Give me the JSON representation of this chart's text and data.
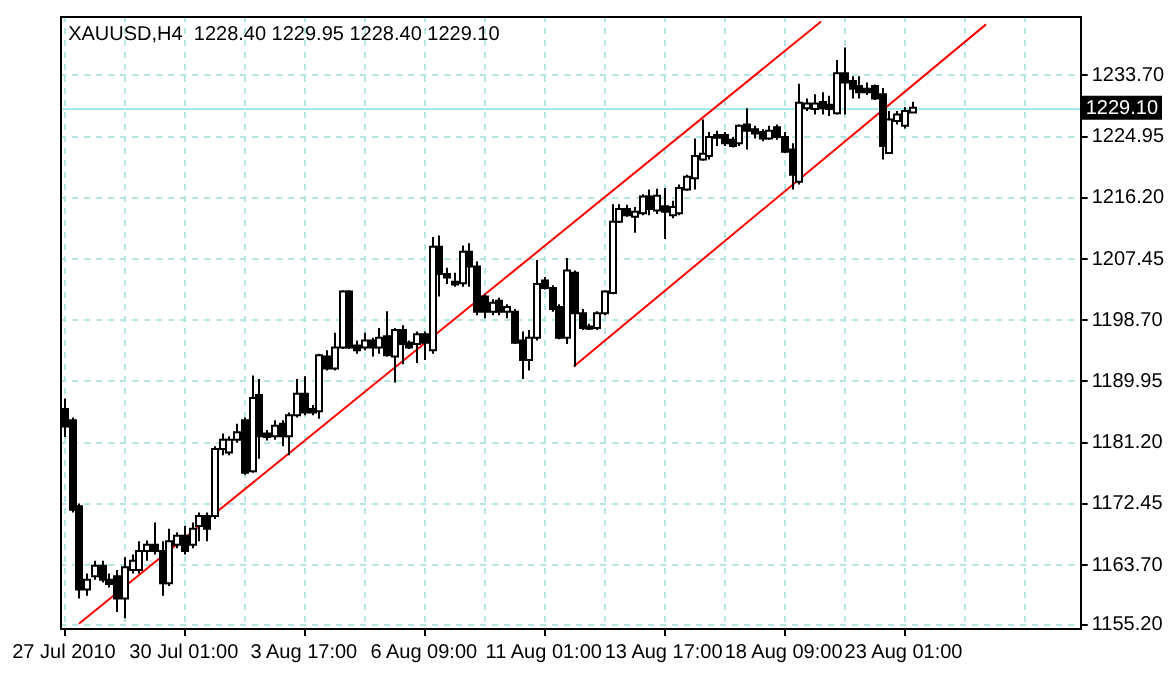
{
  "chart_data": {
    "type": "candlestick",
    "title": "XAUUSD,H4  1228.40 1229.95 1228.40 1229.10",
    "color": "#000000",
    "categories": [
      "27 Jul 2010",
      null,
      null,
      null,
      null,
      null,
      null,
      null,
      null,
      null,
      null,
      null,
      null,
      null,
      null,
      null,
      "30 Jul 01:00",
      null,
      null,
      null,
      null,
      null,
      null,
      null,
      null,
      null,
      null,
      null,
      null,
      null,
      null,
      null,
      "3 Aug 17:00",
      null,
      null,
      null,
      null,
      null,
      null,
      null,
      null,
      null,
      null,
      null,
      null,
      null,
      null,
      null,
      "6 Aug 09:00",
      null,
      null,
      null,
      null,
      null,
      null,
      null,
      null,
      null,
      null,
      null,
      null,
      null,
      null,
      null,
      "11 Aug 01:00",
      null,
      null,
      null,
      null,
      null,
      null,
      null,
      null,
      null,
      null,
      null,
      null,
      null,
      null,
      null,
      "13 Aug 17:00",
      null,
      null,
      null,
      null,
      null,
      null,
      null,
      null,
      null,
      null,
      null,
      null,
      null,
      null,
      null,
      "18 Aug 09:00",
      null,
      null,
      null,
      null,
      null,
      null,
      null,
      null,
      null,
      null,
      null,
      null,
      null,
      null,
      null,
      "23 Aug 01:00",
      null,
      null,
      null,
      null,
      null,
      null,
      null,
      null,
      null,
      null,
      null,
      null,
      null,
      null,
      null,
      null,
      null,
      null,
      null,
      null,
      null,
      null,
      null
    ],
    "ohlc": [
      [
        1186.0,
        1187.5,
        1182.0,
        1183.5
      ],
      [
        1184.4,
        1184.8,
        1171.2,
        1171.6
      ],
      [
        1172.1,
        1172.5,
        1158.9,
        1160.2
      ],
      [
        1160.2,
        1162.5,
        1159.3,
        1161.6
      ],
      [
        1162.1,
        1164.3,
        1161.6,
        1163.6
      ],
      [
        1163.6,
        1164.3,
        1161.2,
        1161.6
      ],
      [
        1161.6,
        1162.5,
        1160.5,
        1161.0
      ],
      [
        1162.1,
        1163.0,
        1157.0,
        1158.9
      ],
      [
        1158.9,
        1164.8,
        1156.1,
        1163.4
      ],
      [
        1163.0,
        1165.2,
        1162.5,
        1164.3
      ],
      [
        1163.0,
        1167.1,
        1162.5,
        1165.7
      ],
      [
        1165.7,
        1167.2,
        1164.3,
        1166.6
      ],
      [
        1166.6,
        1169.8,
        1165.2,
        1165.7
      ],
      [
        1165.7,
        1167.1,
        1159.3,
        1161.1
      ],
      [
        1161.1,
        1168.9,
        1160.7,
        1167.1
      ],
      [
        1166.6,
        1168.4,
        1166.1,
        1167.9
      ],
      [
        1167.9,
        1169.3,
        1165.2,
        1165.7
      ],
      [
        1166.6,
        1169.8,
        1166.1,
        1168.9
      ],
      [
        1169.3,
        1171.2,
        1167.1,
        1170.7
      ],
      [
        1170.7,
        1171.2,
        1167.1,
        1168.9
      ],
      [
        1170.7,
        1180.7,
        1170.3,
        1180.3
      ],
      [
        1180.3,
        1182.5,
        1179.4,
        1181.6
      ],
      [
        1179.8,
        1182.1,
        1179.4,
        1181.6
      ],
      [
        1181.6,
        1183.9,
        1181.2,
        1182.7
      ],
      [
        1184.4,
        1184.8,
        1176.6,
        1176.9
      ],
      [
        1177.1,
        1190.8,
        1176.9,
        1187.6
      ],
      [
        1188.0,
        1190.3,
        1178.9,
        1182.1
      ],
      [
        1182.5,
        1183.0,
        1181.5,
        1182.0
      ],
      [
        1182.1,
        1184.4,
        1181.6,
        1183.6
      ],
      [
        1183.9,
        1184.4,
        1180.7,
        1182.1
      ],
      [
        1182.1,
        1185.5,
        1179.4,
        1185.1
      ],
      [
        1185.1,
        1190.3,
        1184.8,
        1188.2
      ],
      [
        1188.2,
        1190.7,
        1185.1,
        1185.5
      ],
      [
        1186.0,
        1186.6,
        1185.1,
        1185.5
      ],
      [
        1185.7,
        1193.9,
        1184.6,
        1193.7
      ],
      [
        1193.5,
        1194.4,
        1191.5,
        1191.8
      ],
      [
        1191.8,
        1196.9,
        1191.5,
        1194.8
      ],
      [
        1194.8,
        1203.0,
        1194.6,
        1202.8
      ],
      [
        1202.8,
        1203.0,
        1194.6,
        1194.8
      ],
      [
        1195.1,
        1195.8,
        1193.9,
        1194.4
      ],
      [
        1194.8,
        1196.9,
        1194.4,
        1195.8
      ],
      [
        1195.8,
        1196.2,
        1193.5,
        1194.8
      ],
      [
        1194.8,
        1197.6,
        1193.9,
        1196.2
      ],
      [
        1196.4,
        1200.0,
        1193.5,
        1193.7
      ],
      [
        1193.5,
        1197.6,
        1189.8,
        1197.3
      ],
      [
        1197.3,
        1198.0,
        1192.4,
        1195.3
      ],
      [
        1195.5,
        1195.8,
        1194.6,
        1194.8
      ],
      [
        1195.3,
        1197.1,
        1192.6,
        1196.7
      ],
      [
        1196.7,
        1197.1,
        1193.0,
        1195.5
      ],
      [
        1194.4,
        1210.6,
        1193.9,
        1209.2
      ],
      [
        1209.2,
        1210.8,
        1202.1,
        1205.3
      ],
      [
        1205.3,
        1206.2,
        1203.9,
        1204.8
      ],
      [
        1204.2,
        1205.5,
        1203.5,
        1203.8
      ],
      [
        1204.0,
        1209.4,
        1203.5,
        1208.5
      ],
      [
        1208.5,
        1209.7,
        1203.5,
        1206.4
      ],
      [
        1206.4,
        1207.1,
        1199.4,
        1199.9
      ],
      [
        1202.1,
        1202.4,
        1199.0,
        1199.9
      ],
      [
        1199.9,
        1201.7,
        1199.4,
        1201.2
      ],
      [
        1201.5,
        1201.9,
        1199.4,
        1199.9
      ],
      [
        1199.9,
        1201.0,
        1199.0,
        1200.6
      ],
      [
        1199.9,
        1200.3,
        1195.3,
        1195.5
      ],
      [
        1195.8,
        1197.1,
        1190.3,
        1193.0
      ],
      [
        1193.0,
        1197.3,
        1191.5,
        1196.2
      ],
      [
        1196.2,
        1207.3,
        1195.8,
        1203.9
      ],
      [
        1204.4,
        1204.9,
        1203.1,
        1203.3
      ],
      [
        1203.3,
        1203.7,
        1199.9,
        1200.3
      ],
      [
        1200.6,
        1201.0,
        1196.0,
        1196.2
      ],
      [
        1196.2,
        1207.6,
        1195.3,
        1205.8
      ],
      [
        1205.5,
        1205.8,
        1192.1,
        1199.7
      ],
      [
        1199.7,
        1200.3,
        1197.3,
        1197.6
      ],
      [
        1197.8,
        1198.2,
        1197.3,
        1197.5
      ],
      [
        1197.6,
        1200.0,
        1197.3,
        1199.7
      ],
      [
        1199.7,
        1203.0,
        1199.4,
        1202.8
      ],
      [
        1202.6,
        1215.3,
        1202.4,
        1212.8
      ],
      [
        1212.8,
        1215.3,
        1212.6,
        1214.6
      ],
      [
        1214.6,
        1215.2,
        1213.5,
        1213.7
      ],
      [
        1213.5,
        1214.9,
        1211.2,
        1214.2
      ],
      [
        1214.0,
        1216.7,
        1213.7,
        1216.4
      ],
      [
        1216.4,
        1217.4,
        1213.7,
        1214.6
      ],
      [
        1214.4,
        1217.5,
        1213.9,
        1216.5
      ],
      [
        1215.0,
        1217.6,
        1210.3,
        1214.2
      ],
      [
        1213.7,
        1215.8,
        1213.3,
        1214.9
      ],
      [
        1214.0,
        1218.1,
        1213.7,
        1217.6
      ],
      [
        1217.4,
        1219.5,
        1217.2,
        1219.2
      ],
      [
        1219.0,
        1224.7,
        1217.4,
        1222.2
      ],
      [
        1221.7,
        1227.4,
        1221.5,
        1222.5
      ],
      [
        1222.2,
        1225.6,
        1221.7,
        1224.9
      ],
      [
        1225.2,
        1225.8,
        1223.6,
        1224.8
      ],
      [
        1225.2,
        1225.6,
        1223.6,
        1224.0
      ],
      [
        1224.5,
        1224.9,
        1223.4,
        1223.6
      ],
      [
        1224.0,
        1226.7,
        1223.6,
        1226.5
      ],
      [
        1226.7,
        1229.0,
        1223.1,
        1225.8
      ],
      [
        1226.0,
        1226.5,
        1224.7,
        1225.4
      ],
      [
        1225.6,
        1226.0,
        1224.3,
        1224.7
      ],
      [
        1224.7,
        1226.5,
        1224.5,
        1225.8
      ],
      [
        1226.3,
        1226.7,
        1224.5,
        1224.9
      ],
      [
        1224.9,
        1225.6,
        1222.6,
        1222.8
      ],
      [
        1223.1,
        1224.0,
        1217.4,
        1219.5
      ],
      [
        1218.5,
        1232.5,
        1218.1,
        1229.8
      ],
      [
        1229.0,
        1230.4,
        1228.6,
        1229.7
      ],
      [
        1228.9,
        1231.0,
        1228.1,
        1229.7
      ],
      [
        1229.9,
        1231.3,
        1228.1,
        1229.0
      ],
      [
        1229.5,
        1230.8,
        1227.9,
        1228.9
      ],
      [
        1228.3,
        1235.9,
        1228.1,
        1234.0
      ],
      [
        1234.0,
        1237.7,
        1228.1,
        1232.7
      ],
      [
        1232.9,
        1233.6,
        1230.4,
        1231.8
      ],
      [
        1232.2,
        1233.6,
        1230.4,
        1231.3
      ],
      [
        1231.8,
        1232.7,
        1230.9,
        1231.3
      ],
      [
        1232.2,
        1232.4,
        1230.2,
        1230.4
      ],
      [
        1231.0,
        1231.9,
        1221.7,
        1223.6
      ],
      [
        1222.6,
        1228.6,
        1222.5,
        1227.4
      ],
      [
        1227.2,
        1228.6,
        1226.7,
        1228.1
      ],
      [
        1226.5,
        1229.2,
        1226.1,
        1228.6
      ],
      [
        1228.4,
        1229.95,
        1228.4,
        1229.1
      ],
      null,
      null,
      null,
      null,
      null,
      null,
      null,
      null,
      null,
      null,
      null,
      null,
      null,
      null,
      null,
      null,
      null,
      null,
      null,
      null,
      null,
      null
    ],
    "colors": [
      "#000000",
      "#000000",
      "#000000",
      "#ffffff",
      "#ffffff",
      "#000000",
      "#000000",
      "#000000",
      "#ffffff",
      "#ffffff",
      "#ffffff",
      "#ffffff",
      "#000000",
      "#000000",
      "#ffffff",
      "#ffffff",
      "#000000",
      "#ffffff",
      "#ffffff",
      "#000000",
      "#ffffff",
      "#ffffff",
      "#ffffff",
      "#ffffff",
      "#000000",
      "#ffffff",
      "#000000",
      "#000000",
      "#ffffff",
      "#000000",
      "#ffffff",
      "#ffffff",
      "#000000",
      "#000000",
      "#ffffff",
      "#000000",
      "#ffffff",
      "#ffffff",
      "#000000",
      "#000000",
      "#ffffff",
      "#000000",
      "#ffffff",
      "#000000",
      "#ffffff",
      "#000000",
      "#000000",
      "#ffffff",
      "#000000",
      "#ffffff",
      "#000000",
      "#000000",
      "#000000",
      "#ffffff",
      "#000000",
      "#000000",
      "#000000",
      "#ffffff",
      "#000000",
      "#ffffff",
      "#000000",
      "#000000",
      "#ffffff",
      "#ffffff",
      "#000000",
      "#000000",
      "#000000",
      "#ffffff",
      "#000000",
      "#000000",
      "#000000",
      "#ffffff",
      "#ffffff",
      "#ffffff",
      "#ffffff",
      "#000000",
      "#ffffff",
      "#ffffff",
      "#000000",
      "#ffffff",
      "#000000",
      "#ffffff",
      "#ffffff",
      "#ffffff",
      "#ffffff",
      "#ffffff",
      "#ffffff",
      "#000000",
      "#000000",
      "#000000",
      "#ffffff",
      "#000000",
      "#000000",
      "#000000",
      "#ffffff",
      "#000000",
      "#000000",
      "#000000",
      "#ffffff",
      "#ffffff",
      "#ffffff",
      "#000000",
      "#000000",
      "#ffffff",
      "#000000",
      "#000000",
      "#000000",
      "#000000",
      "#000000",
      "#000000",
      "#ffffff",
      "#ffffff",
      "#ffffff",
      "#ffffff",
      null,
      null,
      null,
      null,
      null,
      null,
      null,
      null,
      null,
      null,
      null,
      null,
      null,
      null,
      null,
      null,
      null,
      null,
      null,
      null,
      null,
      null
    ],
    "series": [
      {
        "type": "line",
        "color": "#ff0000",
        "values": [
          null,
          null,
          1155.3,
          null,
          null,
          null,
          null,
          null,
          null,
          null,
          null,
          null,
          null,
          null,
          null,
          null,
          null,
          null,
          null,
          null,
          null,
          null,
          null,
          null,
          null,
          null,
          null,
          null,
          null,
          null,
          null,
          null,
          null,
          null,
          null,
          null,
          null,
          null,
          null,
          null,
          null,
          null,
          null,
          null,
          null,
          null,
          null,
          null,
          null,
          null,
          null,
          null,
          null,
          null,
          null,
          null,
          null,
          null,
          null,
          null,
          null,
          null,
          null,
          null,
          null,
          null,
          null,
          null,
          null,
          null,
          null,
          null,
          null,
          null,
          null,
          null,
          null,
          null,
          null,
          null,
          null,
          null,
          null,
          null,
          null,
          null,
          null,
          null,
          null,
          null,
          null,
          null,
          null,
          null,
          null,
          null,
          null,
          null,
          null,
          null,
          null,
          1241.4,
          null,
          null,
          null,
          null,
          null,
          null,
          null,
          null,
          null,
          null,
          null,
          null,
          null,
          null,
          null,
          null,
          null,
          null,
          null,
          null,
          null,
          null,
          null,
          null,
          null,
          null,
          null,
          null,
          null,
          null,
          null,
          null,
          null,
          null
        ]
      },
      {
        "type": "line",
        "color": "#ff0000",
        "values": [
          null,
          null,
          null,
          null,
          null,
          null,
          null,
          null,
          null,
          null,
          null,
          null,
          null,
          null,
          null,
          null,
          null,
          null,
          null,
          null,
          null,
          null,
          null,
          null,
          null,
          null,
          null,
          null,
          null,
          null,
          null,
          null,
          null,
          null,
          null,
          null,
          null,
          null,
          null,
          null,
          null,
          null,
          null,
          null,
          null,
          null,
          null,
          null,
          null,
          null,
          null,
          null,
          null,
          null,
          null,
          null,
          null,
          null,
          null,
          null,
          null,
          null,
          null,
          null,
          null,
          null,
          null,
          null,
          1192.1,
          null,
          null,
          null,
          null,
          null,
          null,
          null,
          null,
          null,
          null,
          null,
          null,
          null,
          null,
          null,
          null,
          null,
          null,
          null,
          null,
          null,
          null,
          null,
          null,
          null,
          null,
          null,
          null,
          null,
          null,
          null,
          null,
          null,
          null,
          null,
          null,
          null,
          null,
          null,
          null,
          null,
          null,
          null,
          null,
          null,
          null,
          null,
          null,
          null,
          null,
          null,
          null,
          null,
          null,
          1241.0,
          null,
          null,
          null,
          null,
          null,
          null,
          null,
          null,
          null,
          null,
          null,
          null
        ]
      }
    ],
    "ylim": [
      1154.7,
      1242.2
    ],
    "yticks": [
      {
        "value": 1155.2,
        "label": "1155.20"
      },
      {
        "value": 1163.7,
        "label": "1163.70"
      },
      {
        "value": 1172.45,
        "label": "1172.45"
      },
      {
        "value": 1181.2,
        "label": "1181.20"
      },
      {
        "value": 1189.95,
        "label": "1189.95"
      },
      {
        "value": 1198.7,
        "label": "1198.70"
      },
      {
        "value": 1207.45,
        "label": "1207.45"
      },
      {
        "value": 1216.2,
        "label": "1216.20"
      },
      {
        "value": 1224.95,
        "label": "1224.95"
      },
      {
        "value": 1233.7,
        "label": "1233.70"
      }
    ],
    "ref_lines": [
      {
        "axis": "y",
        "value": 1229.1,
        "label": "1229.10",
        "color": "#a8eaea"
      }
    ],
    "grid": true,
    "legend": false
  }
}
